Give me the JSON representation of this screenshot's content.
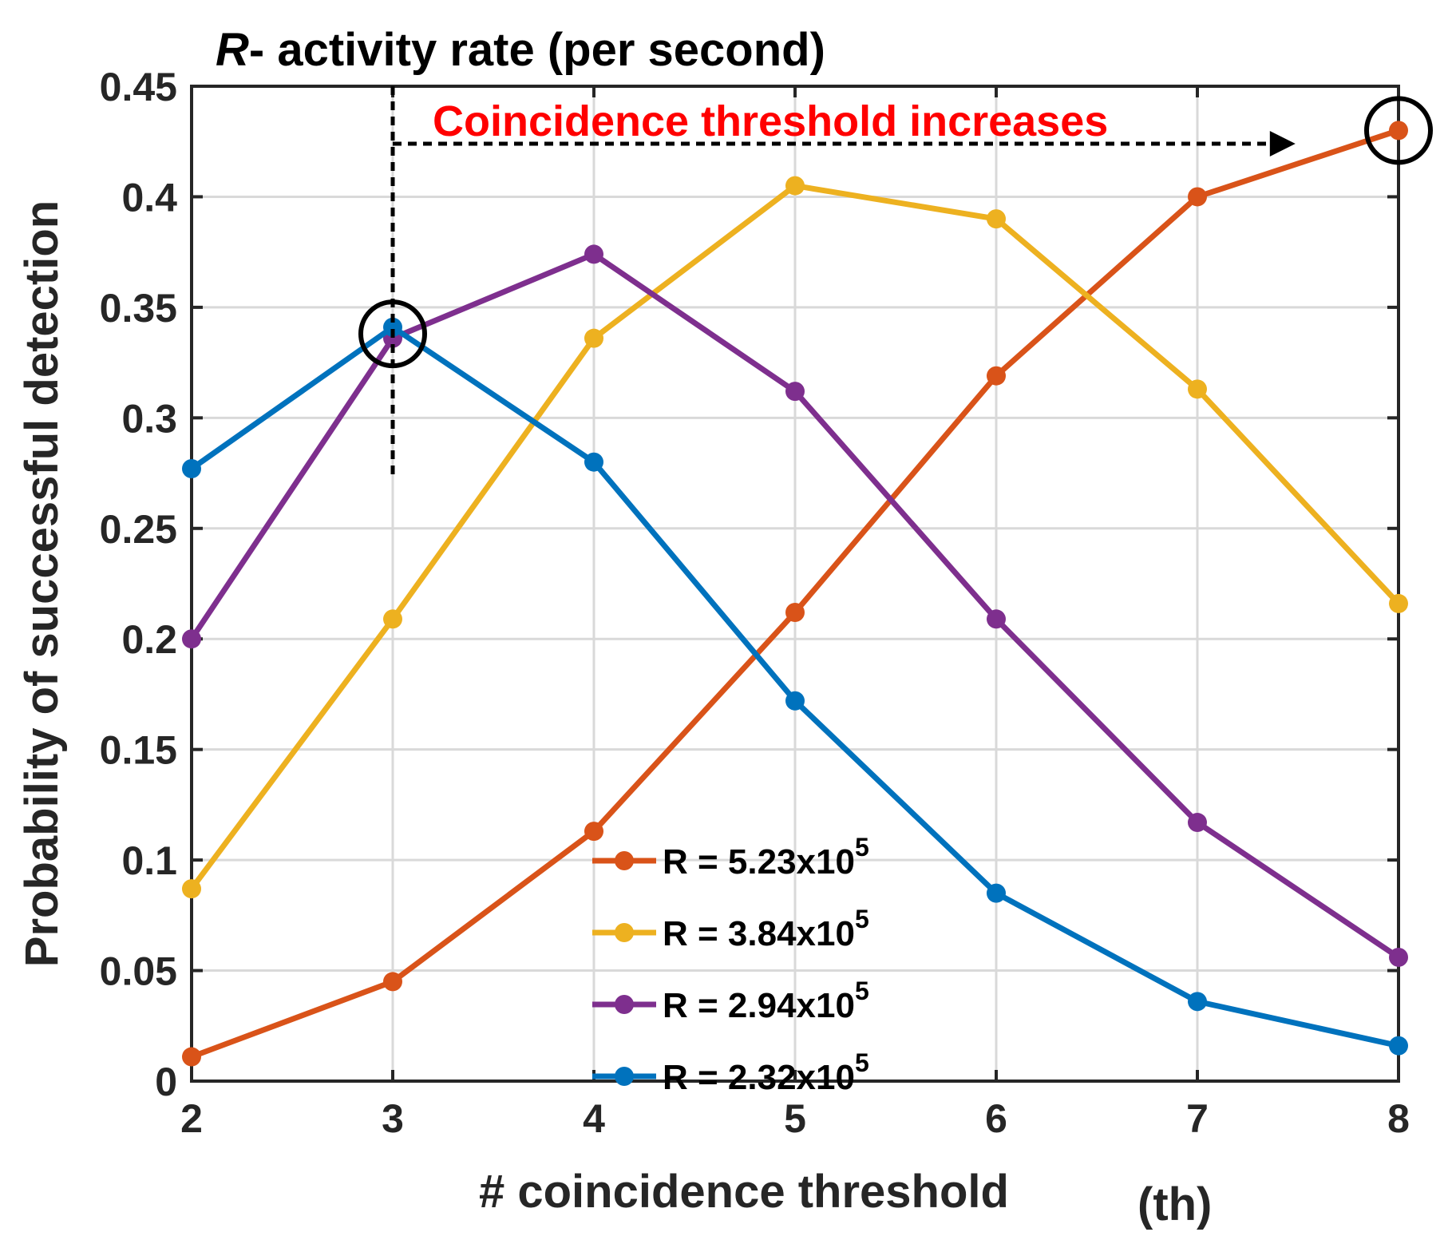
{
  "chart_data": {
    "type": "line",
    "title_italic": "R",
    "title_rest": "- activity rate (per second)",
    "xlabel": "# coincidence threshold",
    "xlabel_suffix": "(th)",
    "ylabel": "Probability of successful detection",
    "x": [
      2,
      3,
      4,
      5,
      6,
      7,
      8
    ],
    "xlim": [
      2,
      8
    ],
    "ylim": [
      0,
      0.45
    ],
    "xticks": [
      2,
      3,
      4,
      5,
      6,
      7,
      8
    ],
    "xtick_labels": [
      "2",
      "3",
      "4",
      "5",
      "6",
      "7",
      "8"
    ],
    "yticks": [
      0,
      0.05,
      0.1,
      0.15,
      0.2,
      0.25,
      0.3,
      0.35,
      0.4,
      0.45
    ],
    "ytick_labels": [
      "0",
      "0.05",
      "0.1",
      "0.15",
      "0.2",
      "0.25",
      "0.3",
      "0.35",
      "0.4",
      "0.45"
    ],
    "grid": true,
    "legend_position": "lower-center",
    "series": [
      {
        "name": "R = 5.23x10",
        "exponent": "5",
        "color": "#D95319",
        "values": [
          0.011,
          0.045,
          0.113,
          0.212,
          0.319,
          0.4,
          0.43
        ]
      },
      {
        "name": "R = 3.84x10",
        "exponent": "5",
        "color": "#EDB120",
        "values": [
          0.087,
          0.209,
          0.336,
          0.405,
          0.39,
          0.313,
          0.216
        ]
      },
      {
        "name": "R = 2.94x10",
        "exponent": "5",
        "color": "#7E2F8E",
        "values": [
          0.2,
          0.336,
          0.374,
          0.312,
          0.209,
          0.117,
          0.056
        ]
      },
      {
        "name": "R = 2.32x10",
        "exponent": "5",
        "color": "#0072BD",
        "values": [
          0.277,
          0.341,
          0.28,
          0.172,
          0.085,
          0.036,
          0.016
        ]
      }
    ],
    "annotation": {
      "text": "Coincidence threshold increases",
      "color": "#ff0000",
      "arrow_from_x": 3,
      "arrow_to_x": 7.4,
      "arrow_y": 0.424,
      "vline_x": 3,
      "vline_y_range": [
        0.274,
        0.45
      ],
      "circled_points": [
        {
          "x": 3,
          "y": 0.338
        },
        {
          "x": 8,
          "y": 0.43
        }
      ]
    }
  }
}
